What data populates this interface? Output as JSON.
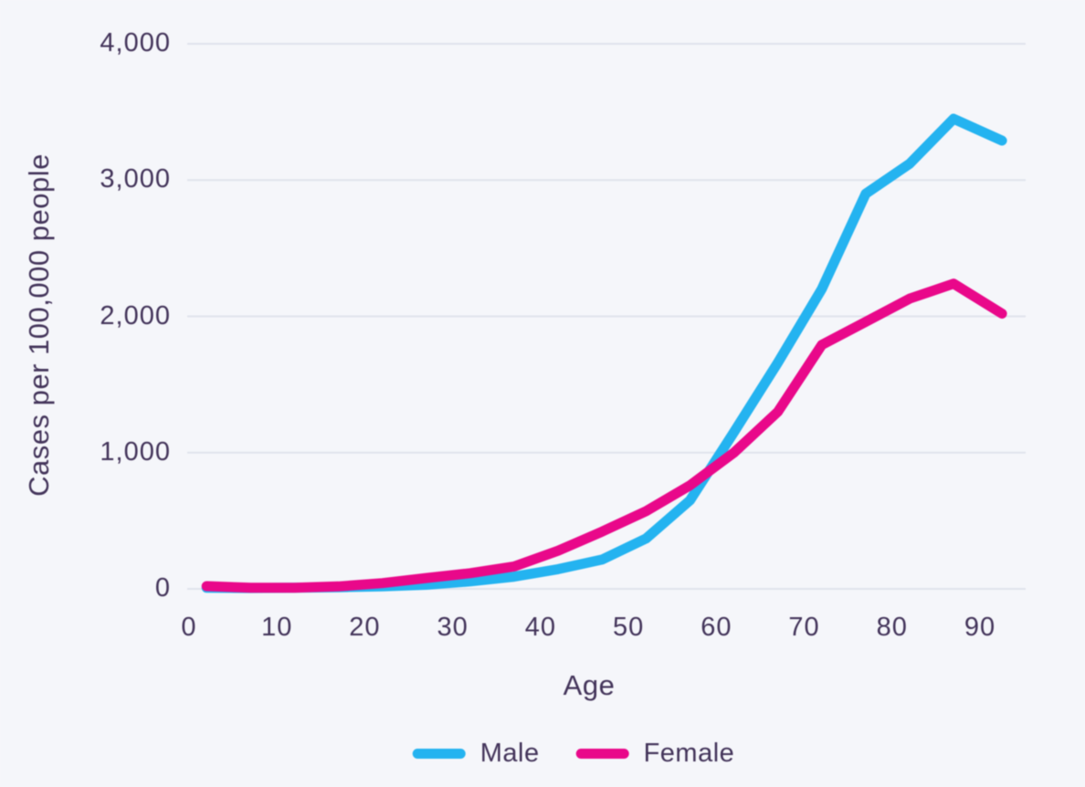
{
  "page": {
    "background_color": "#f5f6fa",
    "text_color": "#43345a"
  },
  "chart_data": {
    "type": "line",
    "title": "",
    "xlabel": "Age",
    "ylabel": "Cases per 100,000 people",
    "xlim": [
      0,
      95
    ],
    "ylim": [
      0,
      4000
    ],
    "grid": "horizontal-only",
    "gridline_color": "#e0e3ec",
    "legend_position": "bottom-center",
    "x_ticks": [
      {
        "value": 0,
        "label": "0"
      },
      {
        "value": 10,
        "label": "10"
      },
      {
        "value": 20,
        "label": "20"
      },
      {
        "value": 30,
        "label": "30"
      },
      {
        "value": 40,
        "label": "40"
      },
      {
        "value": 50,
        "label": "50"
      },
      {
        "value": 60,
        "label": "60"
      },
      {
        "value": 70,
        "label": "70"
      },
      {
        "value": 80,
        "label": "80"
      },
      {
        "value": 90,
        "label": "90"
      }
    ],
    "y_ticks": [
      {
        "value": 0,
        "label": "0"
      },
      {
        "value": 1000,
        "label": "1,000"
      },
      {
        "value": 2000,
        "label": "2,000"
      },
      {
        "value": 3000,
        "label": "3,000"
      },
      {
        "value": 4000,
        "label": "4,000"
      }
    ],
    "x": [
      2,
      7,
      12,
      17,
      22,
      27,
      32,
      37,
      42,
      47,
      52,
      57,
      62,
      67,
      72,
      77,
      82,
      87,
      92.5
    ],
    "series": [
      {
        "name": "Male",
        "color": "#24b3f0",
        "values": [
          8,
          6,
          8,
          12,
          18,
          30,
          55,
          90,
          145,
          215,
          370,
          650,
          1150,
          1660,
          2200,
          2900,
          3120,
          3450,
          3290
        ]
      },
      {
        "name": "Female",
        "color": "#e9088a",
        "values": [
          20,
          8,
          8,
          18,
          42,
          80,
          115,
          165,
          280,
          420,
          570,
          760,
          1000,
          1300,
          1790,
          1960,
          2130,
          2240,
          2020
        ]
      }
    ]
  }
}
